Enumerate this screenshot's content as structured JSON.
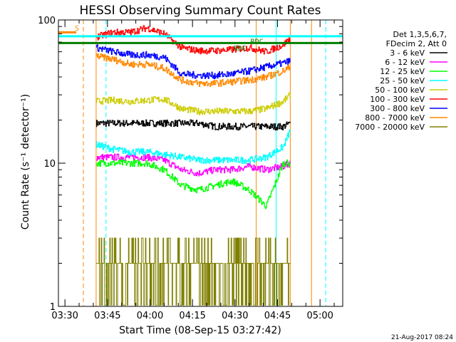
{
  "chart_data": {
    "type": "line",
    "title": "HESSI Observing Summary Count Rates",
    "xlabel": "Start Time (08-Sep-15 03:27:42)",
    "ylabel": "Count Rate (s⁻¹ detector⁻¹)",
    "y_scale": "log",
    "ylim": [
      1,
      100
    ],
    "xlim": [
      "03:27:42",
      "05:08:00"
    ],
    "x_ticks": [
      "03:30",
      "03:45",
      "04:00",
      "04:15",
      "04:30",
      "04:45",
      "05:00"
    ],
    "y_ticks": [
      "1",
      "10",
      "100"
    ],
    "legend_title_lines": [
      "Det 1,3,5,6,7,",
      "FDecim 2, Att 0"
    ],
    "legend_position": "right",
    "footer": "21-Aug-2017 08:24",
    "series": [
      {
        "name": "3 - 6 keV",
        "color": "#000000",
        "x": [
          "03:41:00",
          "03:47:00",
          "03:53:00",
          "03:59:00",
          "04:05:00",
          "04:11:00",
          "04:17:00",
          "04:23:00",
          "04:29:00",
          "04:35:00",
          "04:41:00",
          "04:47:00",
          "04:49:30"
        ],
        "values": [
          19,
          19,
          19,
          19,
          19,
          19,
          19,
          18,
          18,
          18,
          18,
          18,
          19
        ]
      },
      {
        "name": "6 - 12 keV",
        "color": "#ff00ff",
        "x": [
          "03:41:00",
          "03:47:00",
          "03:53:00",
          "03:59:00",
          "04:05:00",
          "04:11:00",
          "04:17:00",
          "04:23:00",
          "04:29:00",
          "04:35:00",
          "04:41:00",
          "04:47:00",
          "04:49:30"
        ],
        "values": [
          11,
          11,
          11,
          11,
          10.5,
          9,
          8.5,
          9,
          9,
          9.5,
          9,
          9.5,
          10
        ]
      },
      {
        "name": "12 - 25 keV",
        "color": "#00ff00",
        "x": [
          "03:41:00",
          "03:47:00",
          "03:53:00",
          "03:59:00",
          "04:05:00",
          "04:11:00",
          "04:17:00",
          "04:23:00",
          "04:29:00",
          "04:35:00",
          "04:41:00",
          "04:47:00",
          "04:49:30"
        ],
        "values": [
          10,
          10,
          10,
          10,
          9,
          7,
          6.5,
          7,
          7.5,
          6.5,
          5,
          10,
          10
        ]
      },
      {
        "name": "25 - 50 keV",
        "color": "#00ffff",
        "x": [
          "03:41:00",
          "03:47:00",
          "03:53:00",
          "03:59:00",
          "04:05:00",
          "04:11:00",
          "04:17:00",
          "04:23:00",
          "04:29:00",
          "04:35:00",
          "04:41:00",
          "04:47:00",
          "04:49:30"
        ],
        "values": [
          13.5,
          12.5,
          12,
          12,
          11.5,
          11,
          10.5,
          10.5,
          10.5,
          10.5,
          11,
          13,
          17
        ]
      },
      {
        "name": "50 - 100 keV",
        "color": "#cccc00",
        "x": [
          "03:41:00",
          "03:47:00",
          "03:53:00",
          "03:59:00",
          "04:05:00",
          "04:11:00",
          "04:17:00",
          "04:23:00",
          "04:29:00",
          "04:35:00",
          "04:41:00",
          "04:47:00",
          "04:49:30"
        ],
        "values": [
          27,
          27.5,
          27,
          27.5,
          28,
          24,
          23,
          23,
          23,
          23,
          24,
          27,
          30
        ]
      },
      {
        "name": "100 - 300 keV",
        "color": "#ff0000",
        "x": [
          "03:41:00",
          "03:47:00",
          "03:53:00",
          "03:59:00",
          "04:05:00",
          "04:11:00",
          "04:17:00",
          "04:23:00",
          "04:29:00",
          "04:35:00",
          "04:41:00",
          "04:47:00",
          "04:49:30"
        ],
        "values": [
          76,
          82,
          82,
          88,
          80,
          64,
          61,
          61,
          62,
          64,
          60,
          67,
          75
        ]
      },
      {
        "name": "300 - 800 keV",
        "color": "#0000ff",
        "x": [
          "03:41:00",
          "03:47:00",
          "03:53:00",
          "03:59:00",
          "04:05:00",
          "04:11:00",
          "04:17:00",
          "04:23:00",
          "04:29:00",
          "04:35:00",
          "04:41:00",
          "04:47:00",
          "04:49:30"
        ],
        "values": [
          64,
          60,
          57,
          57,
          55,
          42,
          41,
          41,
          42,
          44,
          47,
          50,
          52
        ]
      },
      {
        "name": "800 - 7000 keV",
        "color": "#ff8800",
        "x": [
          "03:41:00",
          "03:47:00",
          "03:53:00",
          "03:59:00",
          "04:05:00",
          "04:11:00",
          "04:17:00",
          "04:23:00",
          "04:29:00",
          "04:35:00",
          "04:41:00",
          "04:47:00",
          "04:49:30"
        ],
        "values": [
          56,
          53,
          49,
          49,
          46,
          38,
          36,
          36,
          37,
          38,
          40,
          44,
          47
        ]
      },
      {
        "name": "7000 - 20000 keV",
        "color": "#808000",
        "x": [
          "03:41:00",
          "03:47:00",
          "03:53:00",
          "03:59:00",
          "04:05:00",
          "04:11:00",
          "04:17:00",
          "04:23:00",
          "04:29:00",
          "04:35:00",
          "04:41:00",
          "04:47:00",
          "04:49:30"
        ],
        "values": [
          1.8,
          2.5,
          2.2,
          2.5,
          1.8,
          1.5,
          1.5,
          1.5,
          1.5,
          2.0,
          2.5,
          2.8,
          2.8
        ]
      }
    ],
    "annotations": [
      {
        "label": "S",
        "x": "03:35:00",
        "color": "#ff8800"
      },
      {
        "label": "RDC",
        "x": "04:34:00",
        "color": "#008000"
      },
      {
        "label": "RDC",
        "x": "04:40:00",
        "color": "#008000"
      }
    ],
    "vertical_lines": [
      {
        "x": "03:36:30",
        "color": "#ff8800",
        "style": "dashed"
      },
      {
        "x": "03:41:00",
        "color": "#ff8800",
        "style": "solid"
      },
      {
        "x": "03:44:30",
        "color": "#00ffff",
        "style": "dashed"
      },
      {
        "x": "04:37:30",
        "color": "#ff8800",
        "style": "solid"
      },
      {
        "x": "04:44:30",
        "color": "#00ffff",
        "style": "solid"
      },
      {
        "x": "04:49:30",
        "color": "#ff8800",
        "style": "solid"
      },
      {
        "x": "04:57:00",
        "color": "#ff8800",
        "style": "solid"
      },
      {
        "x": "05:02:00",
        "color": "#00ffff",
        "style": "dashed"
      }
    ],
    "flag_levels": [
      {
        "name": "cyan-flag",
        "color": "#00ffff",
        "value": 77
      },
      {
        "name": "green-flag",
        "color": "#008000",
        "value": 69
      }
    ]
  }
}
